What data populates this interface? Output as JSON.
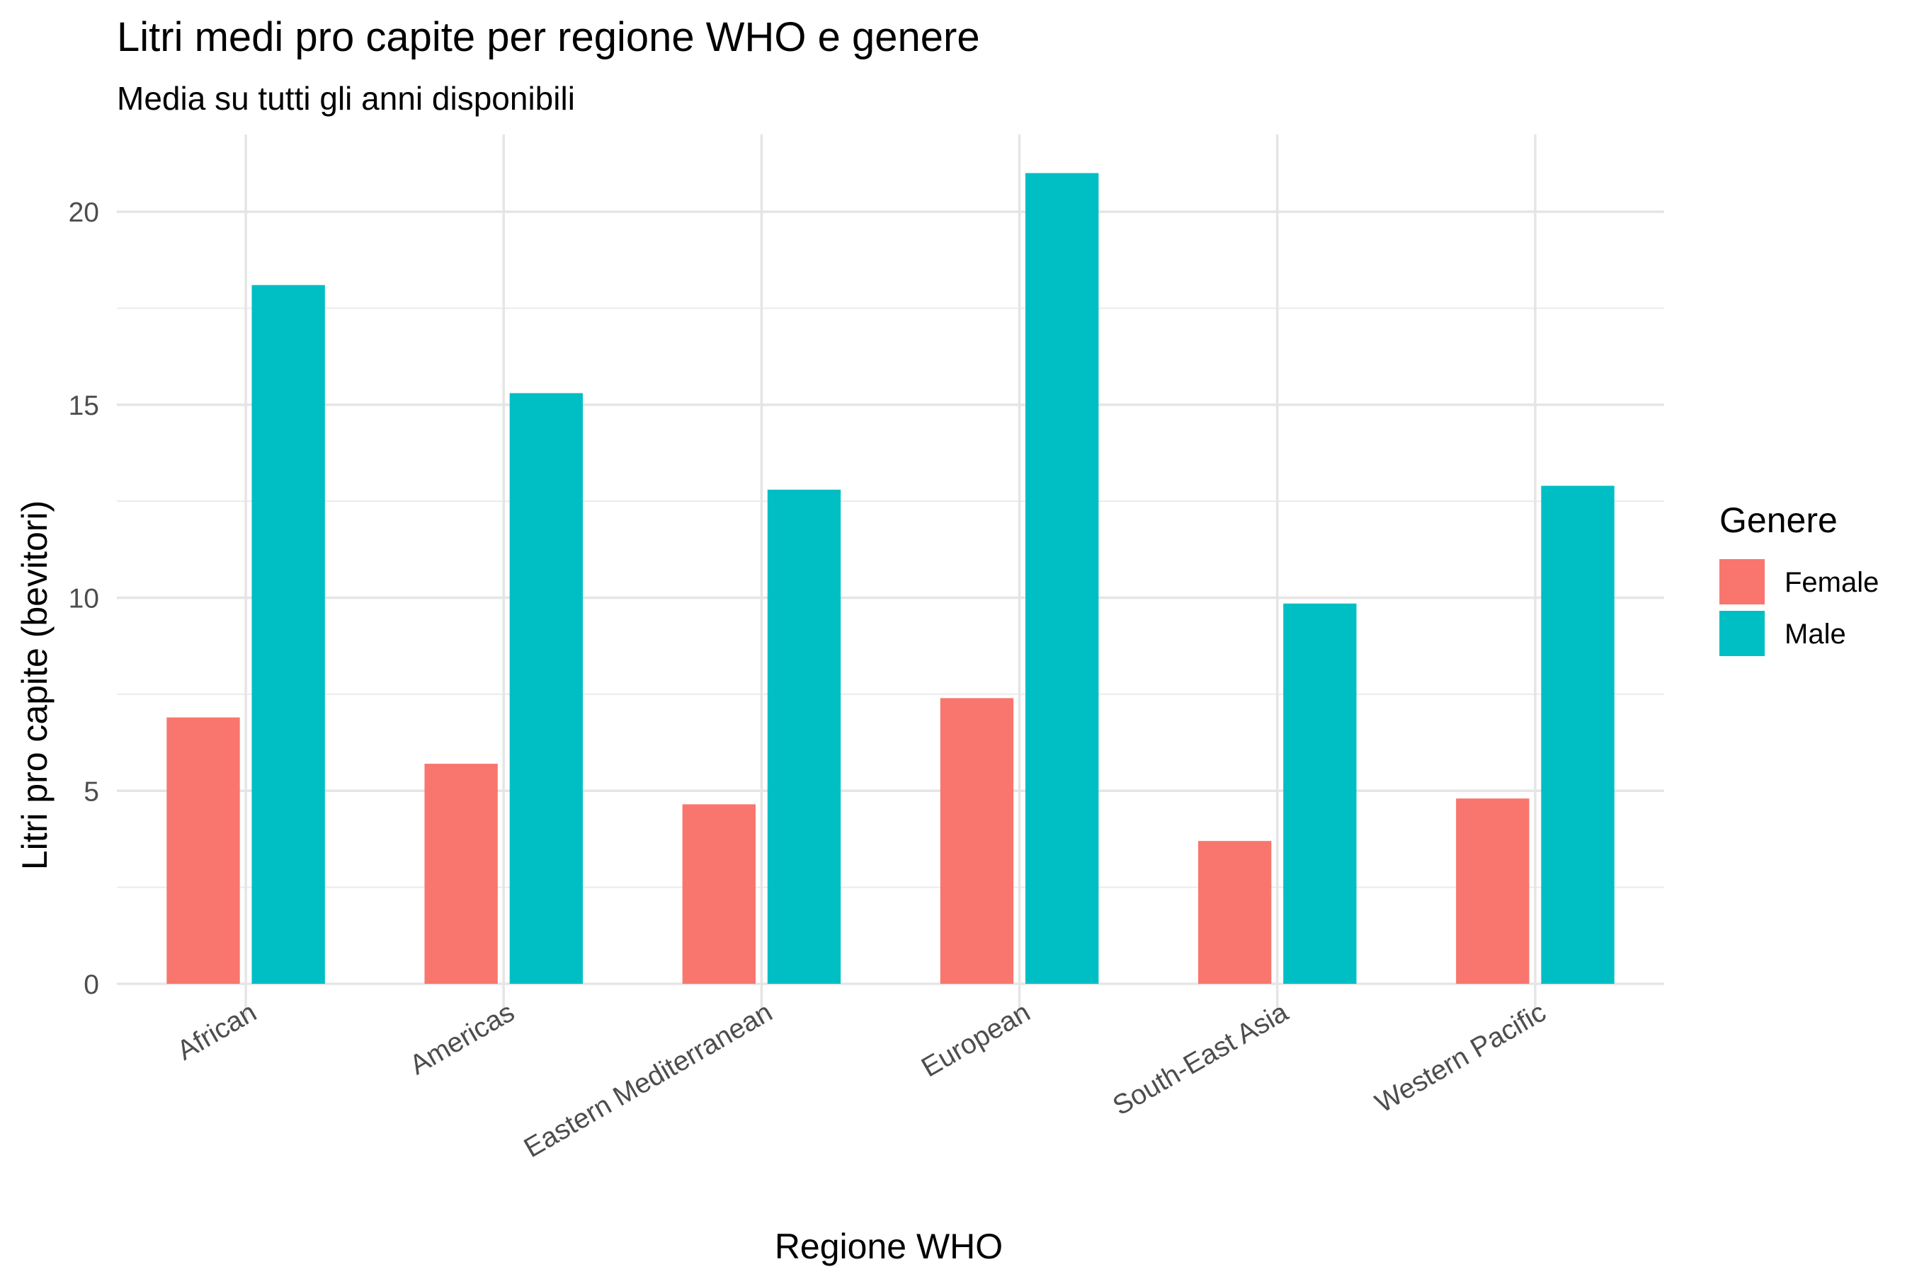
{
  "chart_data": {
    "type": "bar",
    "title": "Litri medi pro capite per regione WHO e genere",
    "subtitle": "Media su tutti gli anni disponibili",
    "xlabel": "Regione WHO",
    "ylabel": "Litri pro capite (bevitori)",
    "categories": [
      "African",
      "Americas",
      "Eastern Mediterranean",
      "European",
      "South-East Asia",
      "Western Pacific"
    ],
    "series": [
      {
        "name": "Female",
        "color": "#F8766D",
        "values": [
          6.9,
          5.7,
          4.65,
          7.4,
          3.7,
          4.8
        ]
      },
      {
        "name": "Male",
        "color": "#00BFC4",
        "values": [
          18.1,
          15.3,
          12.8,
          21.0,
          9.85,
          12.9
        ]
      }
    ],
    "ylim": [
      0,
      22
    ],
    "yticks": [
      0,
      5,
      10,
      15,
      20
    ],
    "grid": true,
    "legend": {
      "title": "Genere",
      "position": "right",
      "labels": [
        "Female",
        "Male"
      ]
    },
    "x_tick_rotation_deg": 30
  }
}
